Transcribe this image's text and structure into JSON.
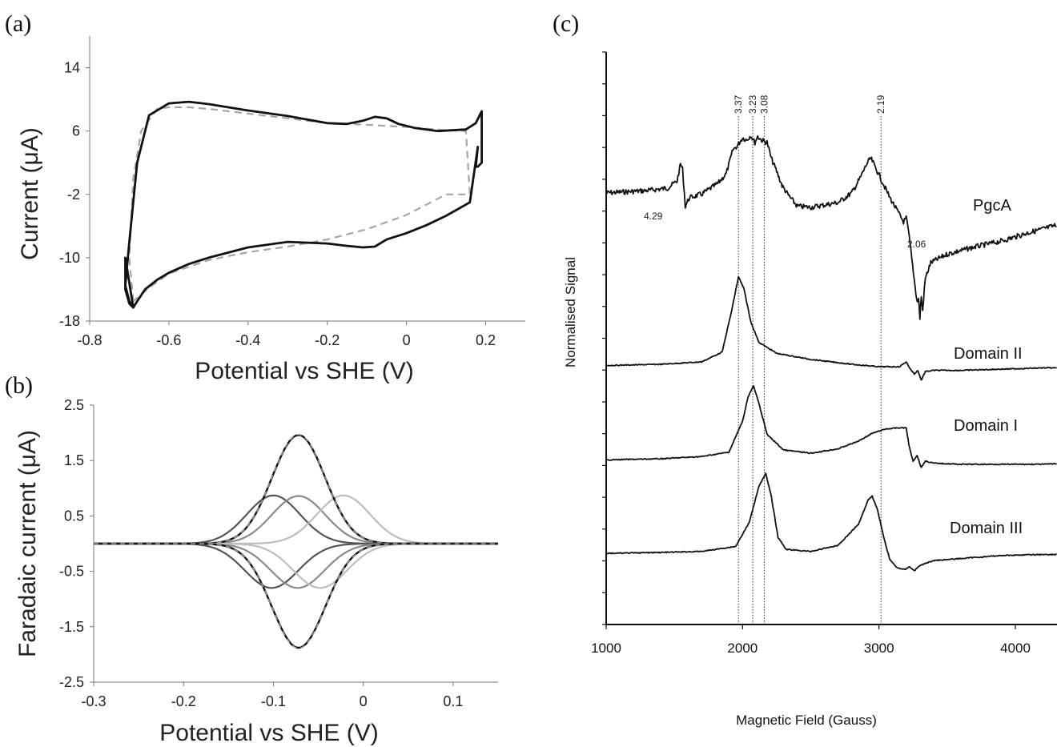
{
  "chart_data": [
    {
      "panel": "(a)",
      "type": "line",
      "xlabel": "Potential vs SHE (V)",
      "ylabel": "Current (μA)",
      "xlim": [
        -0.8,
        0.3
      ],
      "ylim": [
        -18,
        18
      ],
      "xticks": [
        -0.8,
        -0.6,
        -0.4,
        -0.2,
        0,
        0.2
      ],
      "xtick_labels": [
        "-0.8",
        "-0.6",
        "-0.4",
        "-0.2",
        "0",
        "0.2"
      ],
      "yticks": [
        -18,
        -10,
        -2,
        6,
        14
      ],
      "ytick_labels": [
        "-18",
        "-10",
        "-2",
        "6",
        "14"
      ],
      "grid": false,
      "series": [
        {
          "style": "solid",
          "color": "#111111",
          "x": [
            -0.69,
            -0.7,
            -0.71,
            -0.7,
            -0.68,
            -0.65,
            -0.6,
            -0.55,
            -0.5,
            -0.4,
            -0.3,
            -0.2,
            -0.15,
            -0.11,
            -0.08,
            -0.05,
            -0.02,
            0.02,
            0.08,
            0.15,
            0.175,
            0.19,
            0.19,
            0.18,
            0.175,
            0.18,
            0.16,
            0.1,
            0.05,
            0.0,
            -0.05,
            -0.08,
            -0.11,
            -0.15,
            -0.2,
            -0.3,
            -0.4,
            -0.5,
            -0.55,
            -0.6,
            -0.63,
            -0.66,
            -0.68,
            -0.69,
            -0.7,
            -0.71,
            -0.71,
            -0.69
          ],
          "y": [
            -16.3,
            -15.5,
            -13.5,
            -8.0,
            2.0,
            8.0,
            9.5,
            9.7,
            9.4,
            8.6,
            7.9,
            7.0,
            6.9,
            7.3,
            7.8,
            7.6,
            6.9,
            6.4,
            6.0,
            6.2,
            7.0,
            8.5,
            2.0,
            1.5,
            1.5,
            4.0,
            -3.0,
            -4.7,
            -5.9,
            -6.9,
            -7.7,
            -8.6,
            -8.7,
            -8.5,
            -8.2,
            -8.0,
            -8.7,
            -10.0,
            -10.8,
            -11.9,
            -12.8,
            -14.0,
            -15.5,
            -16.3,
            -15.8,
            -14.0,
            -10.0,
            -16.3
          ]
        },
        {
          "style": "dashed",
          "color": "#a6a6a6",
          "x": [
            -0.69,
            -0.7,
            -0.69,
            -0.67,
            -0.63,
            -0.6,
            -0.55,
            -0.5,
            -0.4,
            -0.3,
            -0.2,
            -0.1,
            0.0,
            0.1,
            0.15,
            0.16,
            0.1,
            0.0,
            -0.1,
            -0.2,
            -0.3,
            -0.4,
            -0.5,
            -0.6,
            -0.65,
            -0.69
          ],
          "y": [
            -15.5,
            -10.0,
            0.0,
            6.0,
            8.8,
            9.0,
            9.0,
            8.8,
            8.2,
            7.6,
            7.0,
            6.8,
            6.5,
            6.1,
            6.0,
            -2.0,
            -2.0,
            -4.6,
            -6.4,
            -7.7,
            -8.6,
            -9.3,
            -10.3,
            -12.0,
            -13.8,
            -15.5
          ]
        }
      ]
    },
    {
      "panel": "(b)",
      "type": "line",
      "xlabel": "Potential vs SHE (V)",
      "ylabel": "Faradaic current (μA)",
      "xlim": [
        -0.3,
        0.15
      ],
      "ylim": [
        -2.5,
        2.5
      ],
      "xticks": [
        -0.3,
        -0.2,
        -0.1,
        0,
        0.1
      ],
      "xtick_labels": [
        "-0.3",
        "-0.2",
        "-0.1",
        "0",
        "0.1"
      ],
      "yticks": [
        -2.5,
        -1.5,
        -0.5,
        0.5,
        1.5,
        2.5
      ],
      "ytick_labels": [
        "-2.5",
        "-1.5",
        "-0.5",
        "0.5",
        "1.5",
        "2.5"
      ],
      "grid": false,
      "peaks_oxidative": [
        {
          "center": -0.1,
          "height": 0.87,
          "color": "#555555"
        },
        {
          "center": -0.072,
          "height": 0.86,
          "color": "#8a8a8a"
        },
        {
          "center": -0.022,
          "height": 0.87,
          "color": "#bdbdbd"
        },
        {
          "center": -0.072,
          "height": 1.96,
          "color": "#111111",
          "label_role": "total"
        }
      ],
      "peaks_reductive": [
        {
          "center": -0.102,
          "height": -0.8,
          "color": "#555555"
        },
        {
          "center": -0.073,
          "height": -0.8,
          "color": "#8a8a8a"
        },
        {
          "center": -0.048,
          "height": -0.8,
          "color": "#bdbdbd"
        },
        {
          "center": -0.072,
          "height": -1.88,
          "color": "#111111",
          "label_role": "total"
        }
      ],
      "fit_color": "#9a9a9a",
      "peak_width": 0.042
    },
    {
      "panel": "(c)",
      "type": "line",
      "xlabel": "Magnetic Field (Gauss)",
      "ylabel": "Normalised Signal",
      "xlim": [
        1000,
        4400
      ],
      "xticks": [
        1000,
        2000,
        3000,
        4000
      ],
      "xtick_labels": [
        "1000",
        "2000",
        "3000",
        "4000"
      ],
      "grid": false,
      "g_lines": [
        {
          "label": "3.37",
          "field": 1970
        },
        {
          "label": "3.23",
          "field": 2075
        },
        {
          "label": "3.08",
          "field": 2160
        },
        {
          "label": "2.19",
          "field": 3015
        }
      ],
      "series": [
        {
          "name": "PgcA",
          "x": [
            1000,
            1300,
            1450,
            1520,
            1545,
            1560,
            1580,
            1610,
            1700,
            1820,
            1880,
            1930,
            1960,
            2000,
            2030,
            2060,
            2090,
            2110,
            2140,
            2180,
            2210,
            2250,
            2290,
            2330,
            2400,
            2500,
            2600,
            2700,
            2800,
            2860,
            2910,
            2940,
            2980,
            3030,
            3080,
            3130,
            3180,
            3200,
            3215,
            3240,
            3265,
            3280,
            3290,
            3300,
            3310,
            3320,
            3340,
            3380,
            3500,
            3700,
            3900,
            4100,
            4300,
            4400
          ],
          "y": [
            0.16,
            0.18,
            0.2,
            0.26,
            0.4,
            0.36,
            0.05,
            0.12,
            0.15,
            0.24,
            0.32,
            0.52,
            0.55,
            0.62,
            0.6,
            0.64,
            0.58,
            0.63,
            0.6,
            0.58,
            0.45,
            0.34,
            0.22,
            0.15,
            0.05,
            0.04,
            0.06,
            0.08,
            0.16,
            0.28,
            0.4,
            0.45,
            0.36,
            0.24,
            0.12,
            0.02,
            -0.08,
            -0.05,
            -0.15,
            -0.38,
            -0.62,
            -0.75,
            -0.72,
            -0.88,
            -0.7,
            -0.82,
            -0.55,
            -0.42,
            -0.35,
            -0.29,
            -0.24,
            -0.17,
            -0.11,
            -0.08
          ]
        },
        {
          "name": "Domain II",
          "x": [
            1000,
            1400,
            1700,
            1850,
            1920,
            1970,
            2010,
            2060,
            2120,
            2250,
            2500,
            2800,
            3000,
            3150,
            3200,
            3230,
            3260,
            3285,
            3310,
            3340,
            3400,
            3600,
            3900,
            4200,
            4400
          ],
          "y": [
            -0.01,
            0.0,
            0.02,
            0.1,
            0.44,
            0.72,
            0.62,
            0.35,
            0.18,
            0.09,
            0.04,
            0.0,
            -0.02,
            -0.02,
            0.02,
            -0.04,
            -0.08,
            -0.05,
            -0.13,
            -0.06,
            -0.05,
            -0.05,
            -0.04,
            -0.03,
            -0.03
          ]
        },
        {
          "name": "Domain I",
          "x": [
            1000,
            1400,
            1700,
            1900,
            2000,
            2040,
            2080,
            2120,
            2180,
            2300,
            2500,
            2700,
            2850,
            2950,
            3050,
            3150,
            3200,
            3220,
            3250,
            3280,
            3310,
            3340,
            3400,
            3600,
            3900,
            4200,
            4400
          ],
          "y": [
            -0.01,
            0.0,
            0.02,
            0.06,
            0.34,
            0.56,
            0.66,
            0.5,
            0.22,
            0.08,
            0.05,
            0.09,
            0.16,
            0.23,
            0.27,
            0.28,
            0.28,
            0.12,
            -0.02,
            0.03,
            -0.08,
            -0.02,
            -0.04,
            -0.05,
            -0.05,
            -0.05,
            -0.04
          ]
        },
        {
          "name": "Domain III",
          "x": [
            1000,
            1400,
            1700,
            1950,
            2050,
            2120,
            2170,
            2210,
            2260,
            2320,
            2500,
            2700,
            2850,
            2920,
            2950,
            2990,
            3040,
            3080,
            3130,
            3190,
            3220,
            3260,
            3300,
            3340,
            3400,
            3600,
            3900,
            4200,
            4400
          ],
          "y": [
            -0.01,
            0.0,
            0.01,
            0.06,
            0.3,
            0.66,
            0.78,
            0.56,
            0.15,
            0.03,
            0.01,
            0.07,
            0.28,
            0.52,
            0.56,
            0.42,
            0.12,
            -0.07,
            -0.15,
            -0.17,
            -0.14,
            -0.18,
            -0.13,
            -0.11,
            -0.08,
            -0.06,
            -0.03,
            -0.02,
            -0.02
          ]
        }
      ],
      "annotations": [
        {
          "text": "4.29",
          "near_series": "PgcA",
          "field": 1390
        },
        {
          "text": "2.06",
          "near_series": "PgcA",
          "field": 3210
        }
      ]
    }
  ]
}
